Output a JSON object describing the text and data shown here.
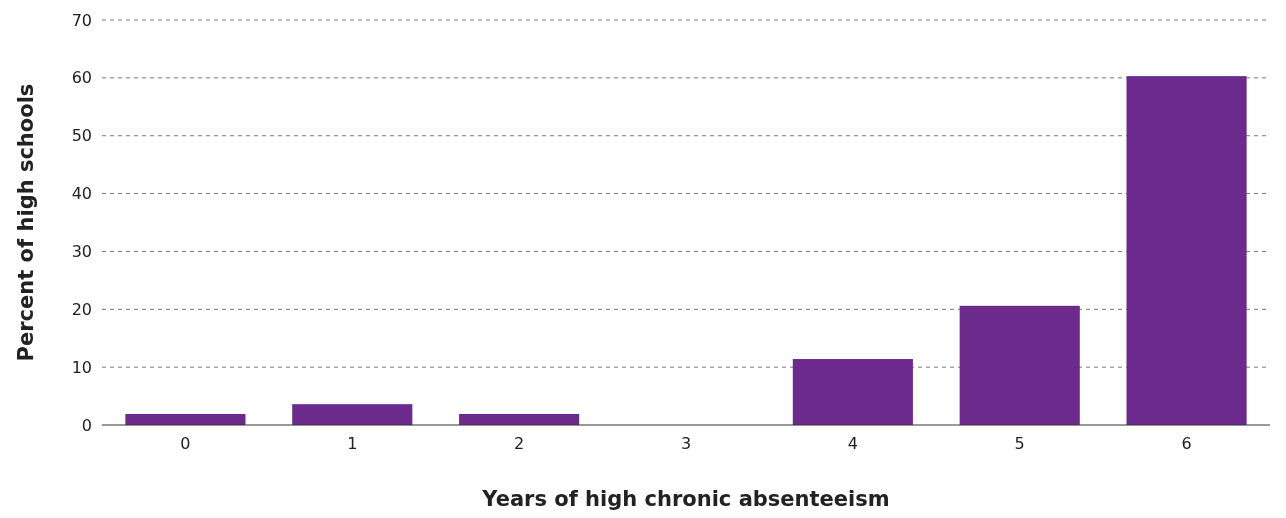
{
  "chart_data": {
    "type": "bar",
    "xlabel": "Years of high chronic absenteeism",
    "ylabel": "Percent of high schools",
    "categories": [
      "0",
      "1",
      "2",
      "3",
      "4",
      "5",
      "6"
    ],
    "values": [
      1.9,
      3.6,
      1.9,
      0,
      11.4,
      20.6,
      60.3
    ],
    "color": "#6c2a8c",
    "ylim": [
      0,
      70
    ],
    "yticks": [
      0,
      10,
      20,
      30,
      40,
      50,
      60,
      70
    ],
    "grid": "y"
  }
}
